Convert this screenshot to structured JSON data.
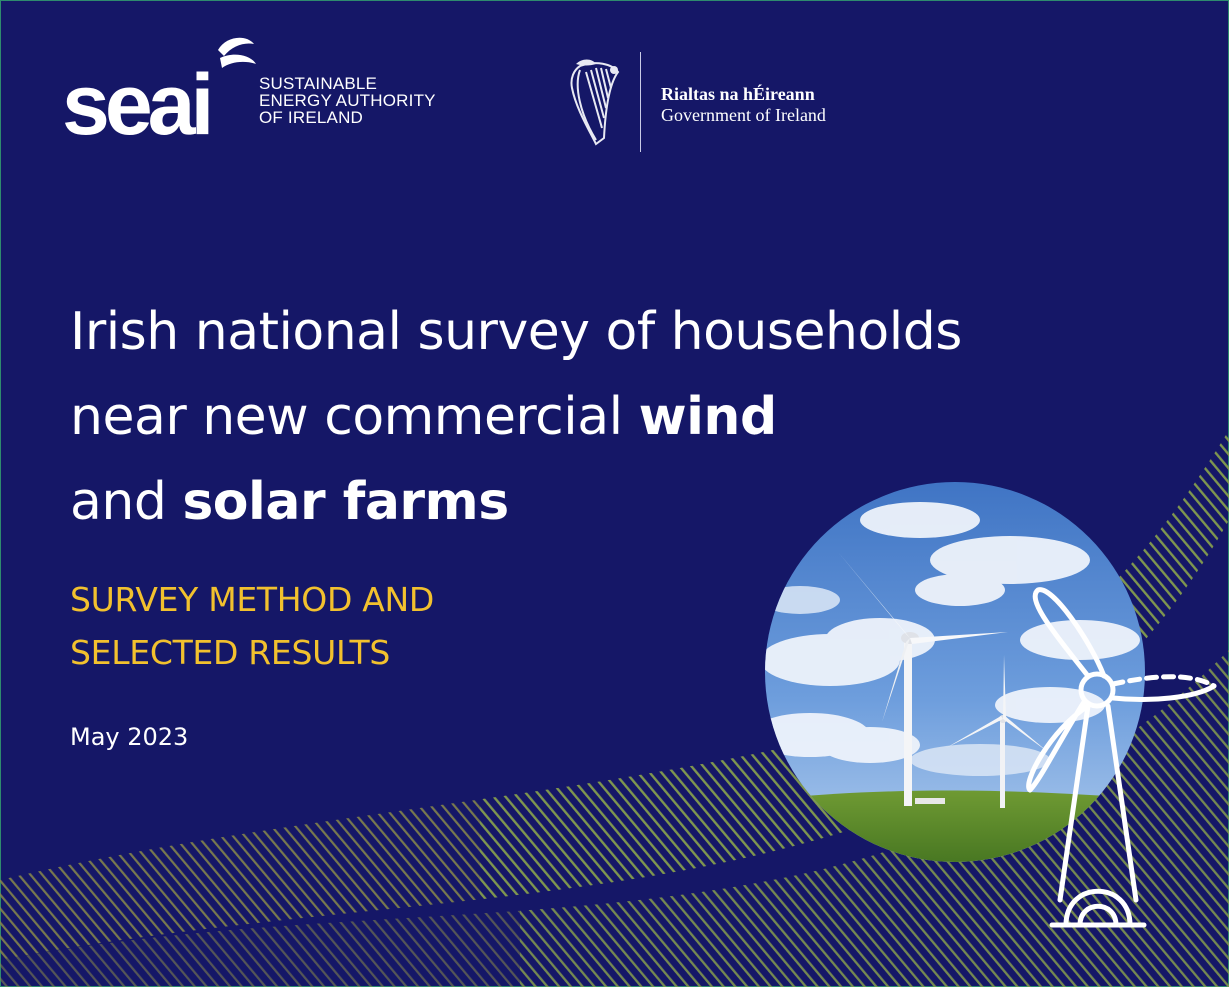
{
  "logos": {
    "seai_wordmark": "seai",
    "seai_tagline": [
      "SUSTAINABLE",
      "ENERGY AUTHORITY",
      "OF IRELAND"
    ],
    "gov_irish": "Rialtas na hÉireann",
    "gov_english": "Government of Ireland",
    "harp_icon": "harp-emblem",
    "seai_icon": "seai-leaf-logo"
  },
  "title": {
    "line1": "Irish national survey of households",
    "line2_plain": "near new commercial ",
    "line2_bold": "wind",
    "line3_plain": "and ",
    "line3_bold": "solar farms"
  },
  "subtitle": [
    "SURVEY METHOD AND",
    "SELECTED RESULTS"
  ],
  "date": "May 2023",
  "colors": {
    "background": "#151767",
    "subtitle": "#f2c12e",
    "text": "#ffffff",
    "stripe_green": "#7f9a4f",
    "stripe_olive": "#8a8a4a"
  }
}
